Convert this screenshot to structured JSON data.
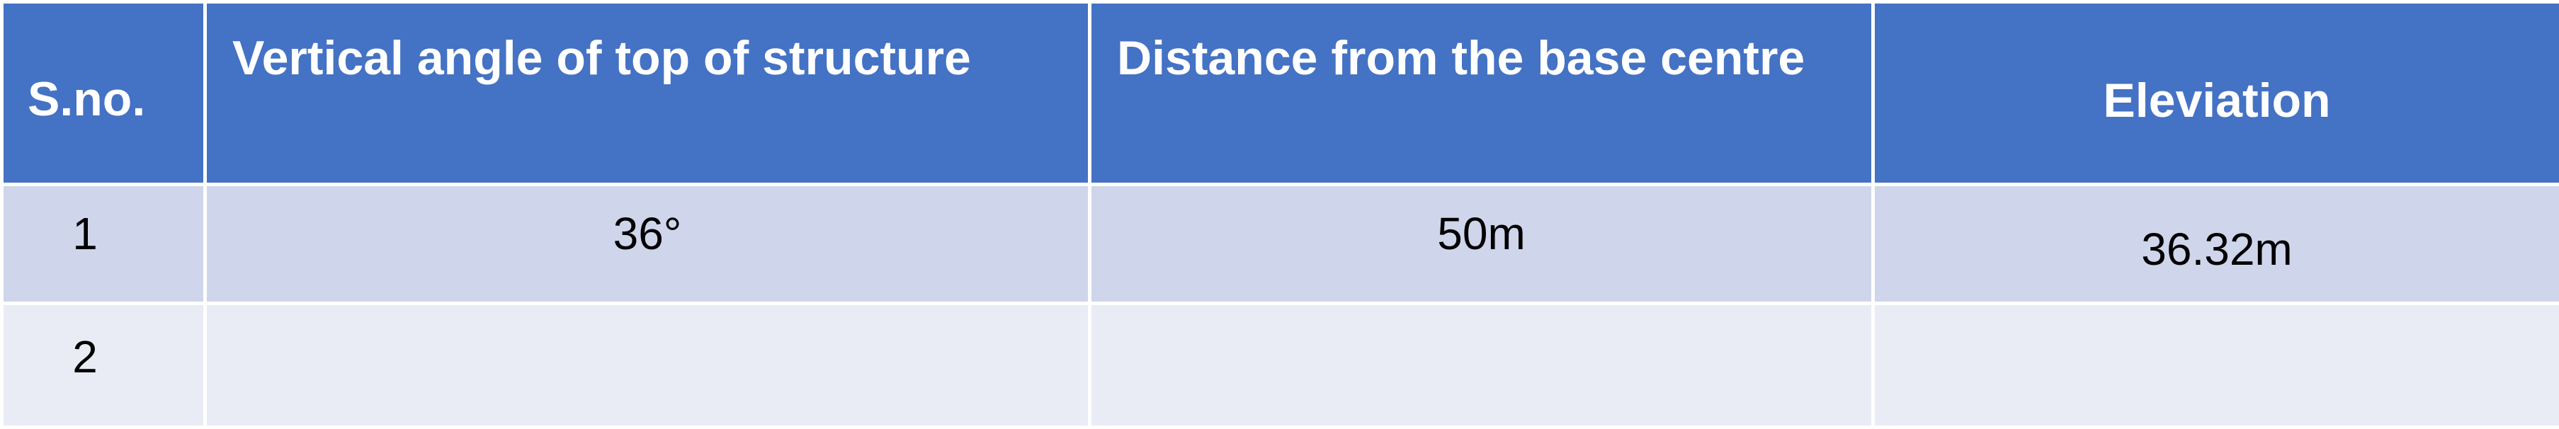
{
  "table": {
    "headers": [
      "S.no.",
      "Vertical angle of top of structure",
      "Distance from the base centre",
      "Eleviation"
    ],
    "rows": [
      [
        "1",
        "36°",
        "50m",
        "36.32m"
      ],
      [
        "2",
        "",
        "",
        ""
      ]
    ],
    "colors": {
      "header_bg": "#4472c4",
      "header_text": "#ffffff",
      "row_odd_bg": "#cfd5ea",
      "row_even_bg": "#e9ebf5",
      "border": "#ffffff"
    }
  }
}
